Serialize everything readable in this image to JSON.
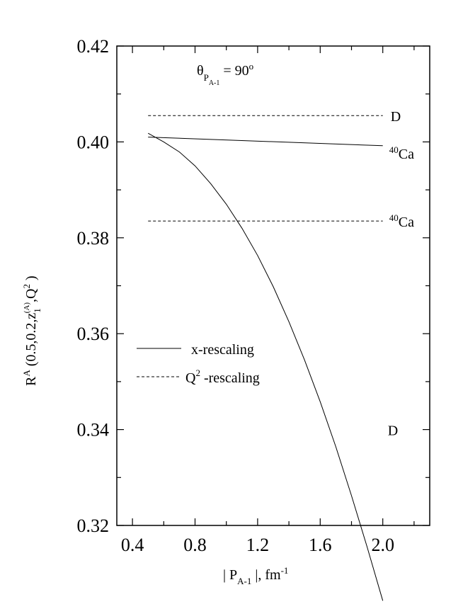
{
  "chart_data": {
    "type": "line",
    "xlim": [
      0.3,
      2.3
    ],
    "ylim": [
      0.32,
      0.42
    ],
    "x_ticks": [
      0.4,
      0.8,
      1.2,
      1.6,
      2.0
    ],
    "x_tick_labels": [
      "0.4",
      "0.8",
      "1.2",
      "1.6",
      "2.0"
    ],
    "y_ticks": [
      0.32,
      0.34,
      0.36,
      0.38,
      0.4,
      0.42
    ],
    "y_tick_labels": [
      "0.32",
      "0.34",
      "0.36",
      "0.38",
      "0.40",
      "0.42"
    ],
    "xlabel": {
      "pre": "| P",
      "sub": "A-1",
      "mid": " |, fm",
      "sup": "-1"
    },
    "ylabel": {
      "pre": "R",
      "sup1": "A",
      "mid1": " (0.5,0.2,z",
      "sub": "1",
      "sup2": "(A)",
      "mid2": ",Q",
      "sup3": "2",
      "post": " )"
    },
    "annotation": {
      "theta": "θ",
      "sub": "P",
      "subsub": "A-1",
      "eq": " = 90",
      "deg": "o"
    },
    "series": [
      {
        "name": "D x-rescaling",
        "style": "solid",
        "x": [
          0.5,
          0.6,
          0.7,
          0.8,
          0.9,
          1.0,
          1.1,
          1.2,
          1.3,
          1.4,
          1.5,
          1.6,
          1.7,
          1.8,
          1.9,
          2.0
        ],
        "y": [
          0.4018,
          0.4,
          0.3979,
          0.395,
          0.3913,
          0.387,
          0.382,
          0.3763,
          0.3698,
          0.3625,
          0.3545,
          0.3458,
          0.3364,
          0.3262,
          0.3155,
          0.3043
        ]
      },
      {
        "name": "40Ca x-rescaling",
        "style": "solid",
        "x": [
          0.5,
          2.0
        ],
        "y": [
          0.401,
          0.3992
        ]
      },
      {
        "name": "D Q2-rescaling",
        "style": "dashed",
        "x": [
          0.5,
          2.0
        ],
        "y": [
          0.4055,
          0.4055
        ]
      },
      {
        "name": "40Ca Q2-rescaling",
        "style": "dashed",
        "x": [
          0.5,
          2.0
        ],
        "y": [
          0.3835,
          0.3835
        ]
      }
    ],
    "curve_labels": [
      {
        "pre": "",
        "sup": "",
        "text": "D",
        "at": [
          2.05,
          0.4055
        ]
      },
      {
        "pre": "",
        "sup": "40",
        "text": "Ca",
        "at": [
          2.05,
          0.3992
        ]
      },
      {
        "pre": "",
        "sup": "40",
        "text": "Ca",
        "at": [
          2.05,
          0.3835
        ]
      },
      {
        "pre": "",
        "sup": "",
        "text": "D",
        "at": [
          2.05,
          0.34
        ]
      }
    ],
    "legend": [
      {
        "style": "solid",
        "label": "x-rescaling"
      },
      {
        "style": "dashed",
        "label_pre": "Q",
        "label_sup": "2",
        "label_post": " -rescaling"
      }
    ]
  }
}
